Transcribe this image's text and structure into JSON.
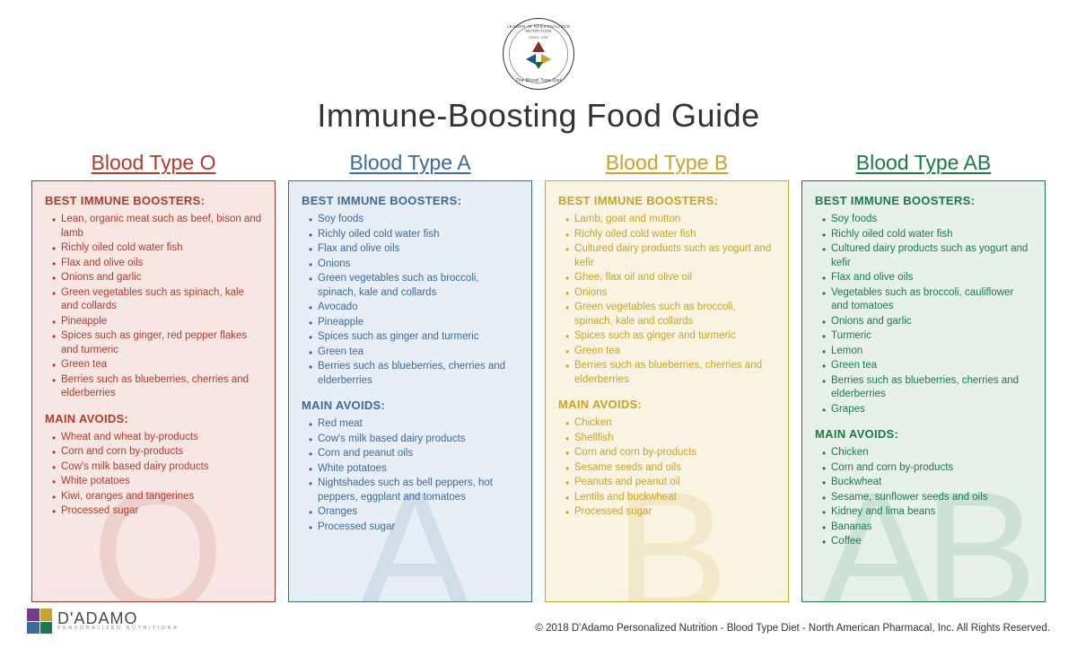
{
  "badge": {
    "top_text": "LEADER IN PERSONALIZED NUTRITION",
    "since": "SINCE 1982",
    "bottom_text": "The Blood Type Diet",
    "tri_colors": {
      "top": "#8b2a2a",
      "left": "#1a5a8a",
      "right": "#c9a227",
      "bottom": "#1a6b3a"
    }
  },
  "title": "Immune-Boosting Food Guide",
  "section_labels": {
    "boosters": "BEST IMMUNE BOOSTERS:",
    "avoids": "MAIN AVOIDS:"
  },
  "columns": [
    {
      "id": "type-o",
      "title": "Blood Type O",
      "watermark": "O",
      "color": "#b23a2a",
      "bg": "#f7e7e4",
      "boosters": [
        "Lean, organic meat such as beef, bison and lamb",
        "Richly oiled cold water fish",
        "Flax and olive oils",
        "Onions and garlic",
        "Green vegetables such as spinach, kale and collards",
        "Pineapple",
        "Spices such as ginger, red pepper flakes and turmeric",
        "Green tea",
        "Berries such as blueberries, cherries and elderberries"
      ],
      "avoids": [
        "Wheat and wheat by-products",
        "Corn and corn by-products",
        "Cow's milk based dairy products",
        "White potatoes",
        "Kiwi, oranges and tangerines",
        "Processed sugar"
      ]
    },
    {
      "id": "type-a",
      "title": "Blood Type A",
      "watermark": "A",
      "color": "#3a6aa0",
      "bg": "#e8eef5",
      "boosters": [
        "Soy foods",
        "Richly oiled cold water fish",
        "Flax and olive oils",
        "Onions",
        "Green vegetables such as broccoli, spinach, kale and collards",
        "Avocado",
        "Pineapple",
        "Spices such as ginger and turmeric",
        "Green tea",
        "Berries such as blueberries, cherries and elderberries"
      ],
      "avoids": [
        "Red meat",
        "Cow's milk based dairy products",
        "Corn and peanut oils",
        "White potatoes",
        "Nightshades such as bell peppers, hot peppers, eggplant and tomatoes",
        "Oranges",
        "Processed sugar"
      ]
    },
    {
      "id": "type-b",
      "title": "Blood Type B",
      "watermark": "B",
      "color": "#c9a227",
      "bg": "#f9f4e2",
      "boosters": [
        "Lamb, goat and mutton",
        "Richly oiled cold water fish",
        "Cultured dairy products such as yogurt and kefir",
        "Ghee, flax oil and olive oil",
        "Onions",
        "Green vegetables such as broccoli, spinach, kale and collards",
        "Spices such as ginger and turmeric",
        "Green tea",
        "Berries such as blueberries, cherries and elderberries"
      ],
      "avoids": [
        "Chicken",
        "Shellfish",
        "Corn and corn by-products",
        "Sesame seeds and oils",
        "Peanuts and peanut oil",
        "Lentils and buckwheat",
        "Processed sugar"
      ]
    },
    {
      "id": "type-ab",
      "title": "Blood Type AB",
      "watermark": "AB",
      "color": "#1a7a4a",
      "bg": "#e6f1ea",
      "boosters": [
        "Soy foods",
        "Richly oiled cold water fish",
        "Cultured dairy products such as yogurt and kefir",
        "Flax and olive oils",
        "Vegetables such as broccoli, cauliflower and tomatoes",
        "Onions and garlic",
        "Turmeric",
        "Lemon",
        "Green tea",
        "Berries such as blueberries, cherries and elderberries",
        "Grapes"
      ],
      "avoids": [
        "Chicken",
        "Corn and corn by-products",
        "Buckwheat",
        "Sesame, sunflower seeds and oils",
        "Kidney and lima beans",
        "Bananas",
        "Coffee"
      ]
    }
  ],
  "footer": {
    "logo_name": "D'ADAMO",
    "logo_sub": "PERSONALIZED NUTRITION®",
    "square_colors": [
      "#7a3a8a",
      "#c9a227",
      "#3a6aa0",
      "#1a7a4a"
    ],
    "copyright": "© 2018 D'Adamo Personalized Nutrition - Blood Type Diet - North American Pharmacal, Inc. All Rights Reserved."
  }
}
